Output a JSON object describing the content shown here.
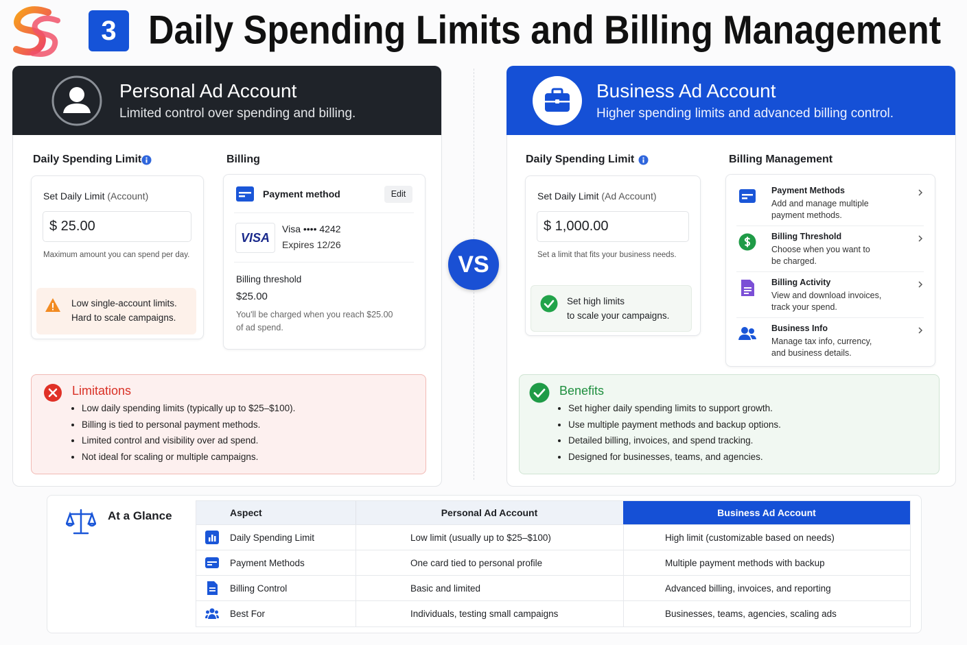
{
  "header": {
    "step": "3",
    "title": "Daily Spending Limits and Billing Management"
  },
  "personal": {
    "title": "Personal Ad Account",
    "subtitle": "Limited control over spending and billing.",
    "limit_heading": "Daily Spending Limit",
    "limit_label": "Set Daily Limit",
    "limit_label_note": "(Account)",
    "limit_value": "$ 25.00",
    "limit_note": "Maximum amount you can spend per day.",
    "warning": [
      "Low single-account limits.",
      "Hard to scale campaigns."
    ],
    "billing_heading": "Billing",
    "payment_method": "Payment method",
    "edit": "Edit",
    "card_brand": "VISA",
    "card_number": "Visa •••• 4242",
    "card_expiry": "Expires 12/26",
    "threshold_label": "Billing threshold",
    "threshold_value": "$25.00",
    "threshold_note": [
      "You'll be charged when you reach $25.00",
      "of ad spend."
    ],
    "limitations_title": "Limitations",
    "limitations": [
      "Low daily spending limits (typically up to $25–$100).",
      "Billing is tied to personal payment methods.",
      "Limited control and visibility over ad spend.",
      "Not ideal for scaling or multiple campaigns."
    ]
  },
  "vs": "VS",
  "business": {
    "title": "Business Ad Account",
    "subtitle": "Higher spending limits and advanced billing control.",
    "limit_heading": "Daily Spending Limit",
    "limit_label": "Set Daily Limit",
    "limit_label_note": "(Ad Account)",
    "limit_value": "$ 1,000.00",
    "limit_note": "Set a limit that fits your business needs.",
    "highlight": [
      "Set high limits",
      "to scale your campaigns."
    ],
    "billing_heading": "Billing Management",
    "billing_items": [
      {
        "title": "Payment Methods",
        "description": [
          "Add and manage multiple",
          "payment methods."
        ]
      },
      {
        "title": "Billing Threshold",
        "description": [
          "Choose when you want to",
          "be charged."
        ]
      },
      {
        "title": "Billing Activity",
        "description": [
          "View and download invoices,",
          "track your spend."
        ]
      },
      {
        "title": "Business Info",
        "description": [
          "Manage tax info, currency,",
          "and business details."
        ]
      }
    ],
    "benefits_title": "Benefits",
    "benefits": [
      "Set higher daily spending limits to support growth.",
      "Use multiple payment methods and backup options.",
      "Detailed billing, invoices, and spend tracking.",
      "Designed for businesses, teams, and agencies."
    ]
  },
  "glance": {
    "title": "At a Glance",
    "columns": [
      "Aspect",
      "Personal Ad Account",
      "Business Ad Account"
    ],
    "rows": [
      [
        "Daily Spending Limit",
        "Low limit (usually up to $25–$100)",
        "High limit (customizable based on needs)"
      ],
      [
        "Payment Methods",
        "One card tied to personal profile",
        "Multiple payment methods with backup"
      ],
      [
        "Billing Control",
        "Basic and limited",
        "Advanced billing, invoices, and reporting"
      ],
      [
        "Best For",
        "Individuals, testing small campaigns",
        "Businesses, teams, agencies, scaling ads"
      ]
    ]
  }
}
